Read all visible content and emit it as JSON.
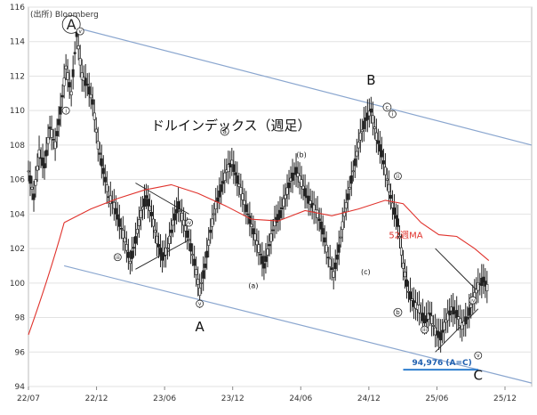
{
  "chart_data": {
    "type": "candlestick",
    "title": "ドルインデックス（週足）",
    "source": "(出所) Bloomberg",
    "ylim": [
      94,
      116
    ],
    "y_ticks": [
      94,
      96,
      98,
      100,
      102,
      104,
      106,
      108,
      110,
      112,
      114,
      116
    ],
    "x_tick_labels": [
      "22/07",
      "22/12",
      "23/06",
      "23/12",
      "24/06",
      "24/12",
      "25/06",
      "25/12"
    ],
    "grid": true,
    "ma_label": "52週MA",
    "projection_label": "94,976 (A=C)",
    "projection_value": 94.976,
    "big_wave_labels": [
      "A",
      "B",
      "C"
    ],
    "circled_A_label": "A",
    "sub_wave_labels": [
      "(a)",
      "(b)",
      "(c)"
    ],
    "circled_sub_labels": [
      "a",
      "b",
      "c"
    ],
    "roman_labels": [
      "i",
      "ii",
      "iii",
      "iv",
      "v"
    ],
    "price_series": [
      [
        0,
        106.5
      ],
      [
        0.3,
        105
      ],
      [
        0.6,
        107.5
      ],
      [
        0.9,
        106.8
      ],
      [
        1.2,
        109
      ],
      [
        1.5,
        108
      ],
      [
        1.8,
        110
      ],
      [
        2.1,
        112.5
      ],
      [
        2.4,
        111
      ],
      [
        2.7,
        114.5
      ],
      [
        3.0,
        112
      ],
      [
        3.3,
        111.5
      ],
      [
        3.6,
        110.5
      ],
      [
        3.9,
        108
      ],
      [
        4.2,
        106.5
      ],
      [
        4.5,
        105
      ],
      [
        4.8,
        104.5
      ],
      [
        5.1,
        103.5
      ],
      [
        5.4,
        102.5
      ],
      [
        5.7,
        101.2
      ],
      [
        6.0,
        102.5
      ],
      [
        6.3,
        104
      ],
      [
        6.6,
        105
      ],
      [
        6.9,
        104
      ],
      [
        7.2,
        102.5
      ],
      [
        7.5,
        101.5
      ],
      [
        7.8,
        102
      ],
      [
        8.1,
        103.5
      ],
      [
        8.4,
        104.5
      ],
      [
        8.7,
        103.5
      ],
      [
        9.0,
        102.5
      ],
      [
        9.3,
        101.2
      ],
      [
        9.6,
        99.5
      ],
      [
        9.9,
        101
      ],
      [
        10.2,
        103
      ],
      [
        10.5,
        104.5
      ],
      [
        10.8,
        105.5
      ],
      [
        11.1,
        106.5
      ],
      [
        11.4,
        107
      ],
      [
        11.7,
        106
      ],
      [
        12.0,
        105
      ],
      [
        12.3,
        104
      ],
      [
        12.6,
        103
      ],
      [
        12.9,
        102
      ],
      [
        13.2,
        101
      ],
      [
        13.5,
        102.2
      ],
      [
        13.8,
        103.5
      ],
      [
        14.1,
        104
      ],
      [
        14.4,
        105
      ],
      [
        14.7,
        106
      ],
      [
        15.0,
        106.5
      ],
      [
        15.3,
        105.8
      ],
      [
        15.6,
        105
      ],
      [
        15.9,
        104.5
      ],
      [
        16.2,
        104
      ],
      [
        16.5,
        103
      ],
      [
        16.8,
        101.5
      ],
      [
        17.1,
        100.5
      ],
      [
        17.4,
        102
      ],
      [
        17.7,
        104
      ],
      [
        18.0,
        105.5
      ],
      [
        18.3,
        107
      ],
      [
        18.6,
        108.5
      ],
      [
        18.9,
        109.5
      ],
      [
        19.2,
        110
      ],
      [
        19.5,
        108.5
      ],
      [
        19.8,
        107.5
      ],
      [
        20.1,
        106
      ],
      [
        20.4,
        104.5
      ],
      [
        20.7,
        103.5
      ],
      [
        21.0,
        101
      ],
      [
        21.3,
        99.5
      ],
      [
        21.6,
        98.8
      ],
      [
        21.9,
        98.5
      ],
      [
        22.2,
        97.8
      ],
      [
        22.5,
        98.2
      ],
      [
        22.8,
        97.2
      ],
      [
        23.1,
        96.9
      ],
      [
        23.4,
        97.8
      ],
      [
        23.7,
        98.5
      ],
      [
        24.0,
        98.2
      ],
      [
        24.3,
        97.5
      ],
      [
        24.6,
        98
      ],
      [
        24.9,
        99
      ],
      [
        25.2,
        99.8
      ],
      [
        25.5,
        100.2
      ],
      [
        25.8,
        99.5
      ]
    ],
    "ma_series": [
      [
        2.0,
        103.5
      ],
      [
        3.5,
        104.3
      ],
      [
        5.0,
        104.9
      ],
      [
        6.5,
        105.4
      ],
      [
        8.0,
        105.7
      ],
      [
        9.5,
        105.2
      ],
      [
        11.0,
        104.5
      ],
      [
        12.5,
        103.7
      ],
      [
        14.0,
        103.6
      ],
      [
        15.5,
        104.2
      ],
      [
        17.0,
        103.9
      ],
      [
        18.5,
        104.3
      ],
      [
        20.0,
        104.8
      ],
      [
        21.0,
        104.6
      ],
      [
        22.0,
        103.5
      ],
      [
        23.0,
        102.8
      ],
      [
        24.0,
        102.7
      ],
      [
        25.0,
        102.0
      ],
      [
        25.8,
        101.3
      ]
    ],
    "upper_channel": [
      [
        2.7,
        114.8
      ],
      [
        28.2,
        108.0
      ]
    ],
    "lower_channel": [
      [
        2.0,
        101.0
      ],
      [
        28.2,
        94.2
      ]
    ]
  }
}
